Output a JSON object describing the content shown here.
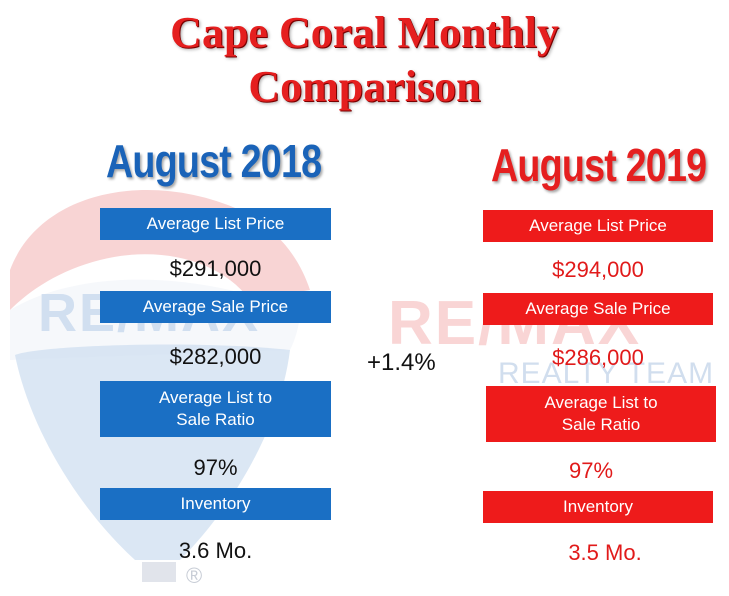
{
  "title_line1": "Cape Coral Monthly",
  "title_line2": "Comparison",
  "change": "+1.4%",
  "left": {
    "year": "August 2018",
    "avg_list_label": "Average List Price",
    "avg_list_value": "$291,000",
    "avg_sale_label": "Average Sale Price",
    "avg_sale_value": "$282,000",
    "ratio_label_1": "Average List to",
    "ratio_label_2": "Sale Ratio",
    "ratio_value": "97%",
    "inventory_label": "Inventory",
    "inventory_value": "3.6 Mo."
  },
  "right": {
    "year": "August 2019",
    "avg_list_label": "Average List Price",
    "avg_list_value": "$294,000",
    "avg_sale_label": "Average Sale Price",
    "avg_sale_value": "$286,000",
    "ratio_label_1": "Average List to",
    "ratio_label_2": "Sale Ratio",
    "ratio_value": "97%",
    "inventory_label": "Inventory",
    "inventory_value": "3.5 Mo."
  },
  "watermark": {
    "brand": "RE/MAX",
    "team": "REALTY TEAM",
    "registered": "®"
  },
  "colors": {
    "blue": "#1a6fc4",
    "red": "#ee1b1b",
    "title_red": "#e51f1f"
  }
}
